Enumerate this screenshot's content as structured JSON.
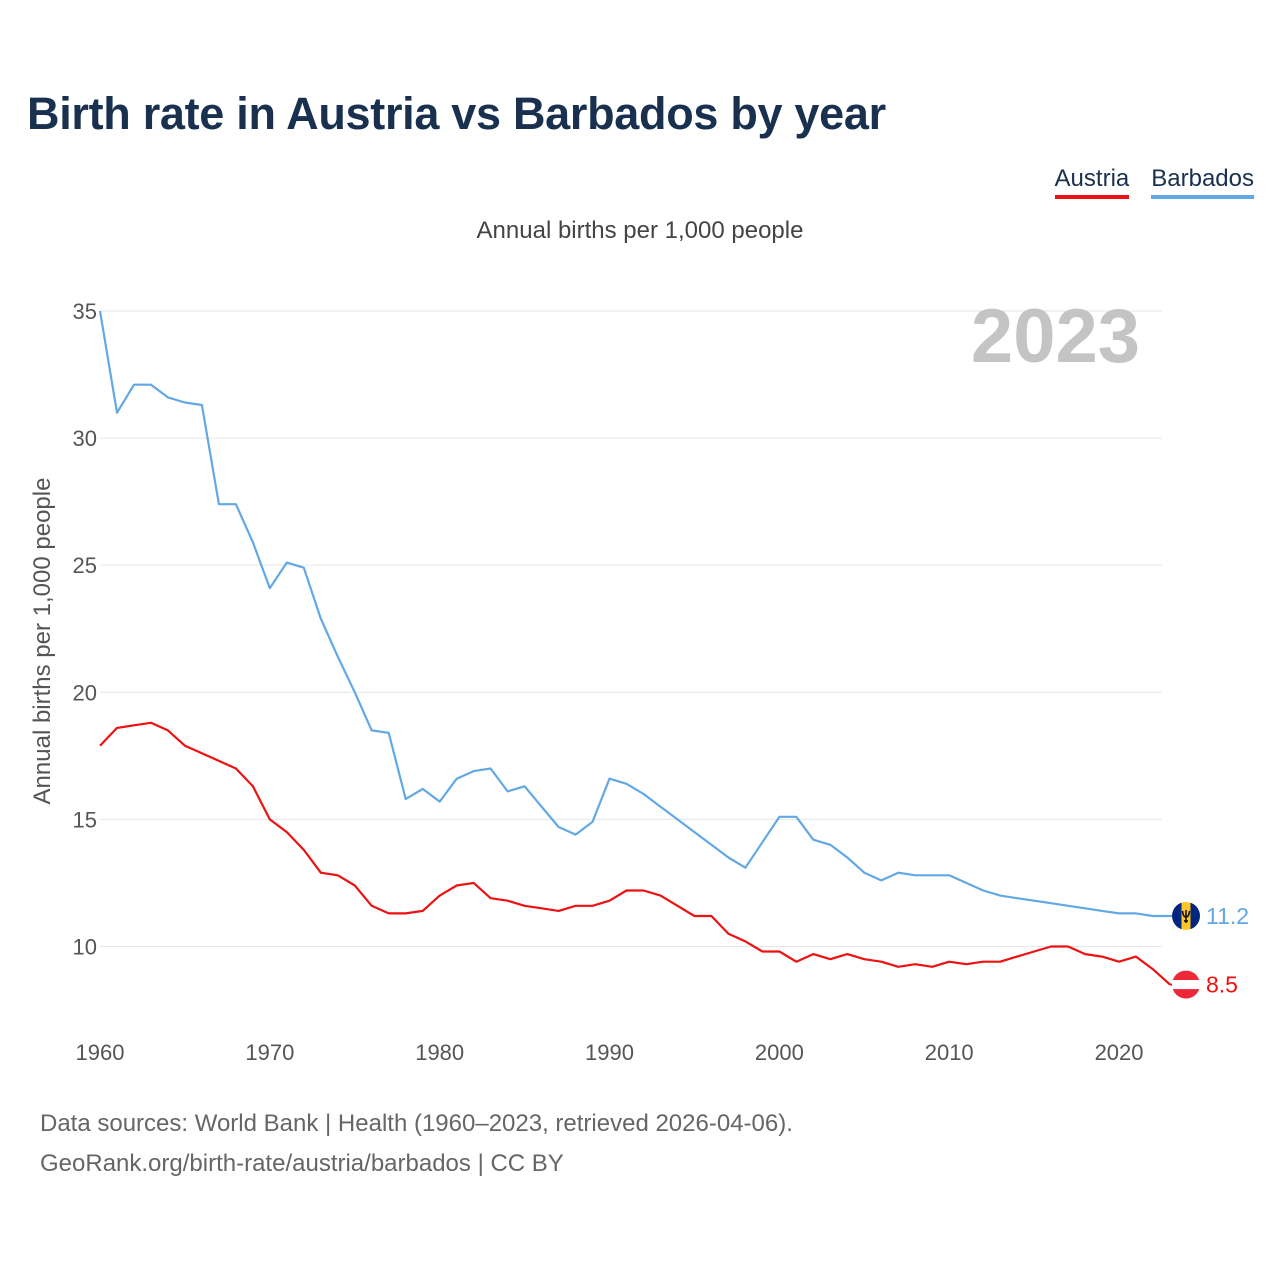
{
  "title": "Birth rate in Austria vs Barbados by year",
  "legend": {
    "austria_label": "Austria",
    "barbados_label": "Barbados"
  },
  "subtitle": "Annual births per 1,000 people",
  "footer": {
    "line1": "Data sources: World Bank | Health (1960–2023, retrieved 2026-04-06).",
    "line2": "GeoRank.org/birth-rate/austria/barbados | CC BY"
  },
  "colors": {
    "austria": "#ee1111",
    "barbados": "#62a8e5",
    "grid": "#e6e6e6",
    "axis_text": "#555555",
    "year_watermark": "#c4c4c4"
  },
  "chart_data": {
    "type": "line",
    "title": "Birth rate in Austria vs Barbados by year",
    "ylabel": "Annual births per 1,000 people",
    "xlabel": "",
    "xlim": [
      1960,
      2023
    ],
    "ylim": [
      7.5,
      35
    ],
    "yticks": [
      10,
      15,
      20,
      25,
      30,
      35
    ],
    "xticks": [
      1960,
      1970,
      1980,
      1990,
      2000,
      2010,
      2020
    ],
    "year_label": "2023",
    "series": [
      {
        "name": "Barbados",
        "color": "#62a8e5",
        "end_label": "11.2",
        "flag_icon": "barbados-flag-icon",
        "values": [
          35.0,
          31.0,
          32.1,
          32.1,
          31.6,
          31.4,
          31.3,
          27.4,
          27.4,
          25.9,
          24.1,
          25.1,
          24.9,
          22.9,
          21.4,
          20.0,
          18.5,
          18.4,
          15.8,
          16.2,
          15.7,
          16.6,
          16.9,
          17.0,
          16.1,
          16.3,
          15.5,
          14.7,
          14.4,
          14.9,
          16.6,
          16.4,
          16.0,
          15.5,
          15.0,
          14.5,
          14.0,
          13.5,
          13.1,
          14.1,
          15.1,
          15.1,
          14.2,
          14.0,
          13.5,
          12.9,
          12.6,
          12.9,
          12.8,
          12.8,
          12.8,
          12.5,
          12.2,
          12.0,
          11.9,
          11.8,
          11.7,
          11.6,
          11.5,
          11.4,
          11.3,
          11.3,
          11.2,
          11.2
        ]
      },
      {
        "name": "Austria",
        "color": "#ee1111",
        "end_label": "8.5",
        "flag_icon": "austria-flag-icon",
        "values": [
          17.9,
          18.6,
          18.7,
          18.8,
          18.5,
          17.9,
          17.6,
          17.3,
          17.0,
          16.3,
          15.0,
          14.5,
          13.8,
          12.9,
          12.8,
          12.4,
          11.6,
          11.3,
          11.3,
          11.4,
          12.0,
          12.4,
          12.5,
          11.9,
          11.8,
          11.6,
          11.5,
          11.4,
          11.6,
          11.6,
          11.8,
          12.2,
          12.2,
          12.0,
          11.6,
          11.2,
          11.2,
          10.5,
          10.2,
          9.8,
          9.8,
          9.4,
          9.7,
          9.5,
          9.7,
          9.5,
          9.4,
          9.2,
          9.3,
          9.2,
          9.4,
          9.3,
          9.4,
          9.4,
          9.6,
          9.8,
          10.0,
          10.0,
          9.7,
          9.6,
          9.4,
          9.6,
          9.1,
          8.5
        ]
      }
    ]
  }
}
